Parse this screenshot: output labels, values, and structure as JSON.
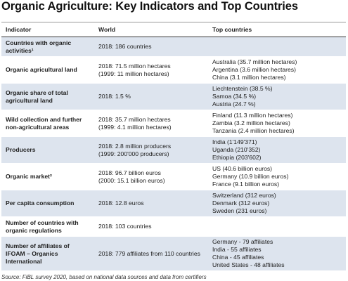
{
  "title": "Organic Agriculture: Key Indicators and Top Countries",
  "table": {
    "header": [
      "Indicator",
      "World",
      "Top countries"
    ],
    "rows": [
      {
        "indicator": "Countries with organic activities¹",
        "world": [
          "2018: 186 countries"
        ],
        "top": []
      },
      {
        "indicator": "Organic agricultural land",
        "world": [
          "2018: 71.5 million hectares",
          "(1999: 11 million hectares)"
        ],
        "top": [
          "Australia (35.7 million hectares)",
          "Argentina (3.6 million hectares)",
          "China (3.1 million hectares)"
        ]
      },
      {
        "indicator": "Organic share of total agricultural land",
        "world": [
          "2018: 1.5 %"
        ],
        "top": [
          "Liechtenstein (38.5 %)",
          "Samoa (34.5 %)",
          "Austria (24.7 %)"
        ]
      },
      {
        "indicator": "Wild collection and further non-agricultural areas",
        "world": [
          "2018: 35.7 million hectares",
          "(1999: 4.1 million hectares)"
        ],
        "top": [
          "Finland (11.3 million hectares)",
          "Zambia (3.2 million hectares)",
          "Tanzania (2.4 million hectares)"
        ]
      },
      {
        "indicator": "Producers",
        "world": [
          "2018: 2.8 million producers",
          "(1999: 200'000 producers)"
        ],
        "top": [
          "India (1'149'371)",
          "Uganda (210'352)",
          "Ethiopia (203'602)"
        ]
      },
      {
        "indicator": "Organic market²",
        "world": [
          "2018: 96.7 billion euros",
          "(2000: 15.1 billion euros)"
        ],
        "top": [
          "US (40.6 billion euros)",
          "Germany (10.9 billion euros)",
          "France (9.1 billion euros)"
        ]
      },
      {
        "indicator": "Per capita consumption",
        "world": [
          "2018: 12.8 euros"
        ],
        "top": [
          "Switzerland (312 euros)",
          "Denmark (312 euros)",
          "Sweden (231 euros)"
        ]
      },
      {
        "indicator": "Number of countries with organic regulations",
        "world": [
          "2018: 103 countries"
        ],
        "top": []
      },
      {
        "indicator": "Number of affiliates of IFOAM – Organics International",
        "world": [
          "2018: 779 affiliates from 110 countries"
        ],
        "top": [
          "Germany - 79 affiliates",
          "India - 55 affiliates",
          "China - 45 affiliates",
          "United States - 48 affiliates"
        ]
      }
    ]
  },
  "source": "Source: FiBL survey 2020, based on national data sources and data from certifiers"
}
